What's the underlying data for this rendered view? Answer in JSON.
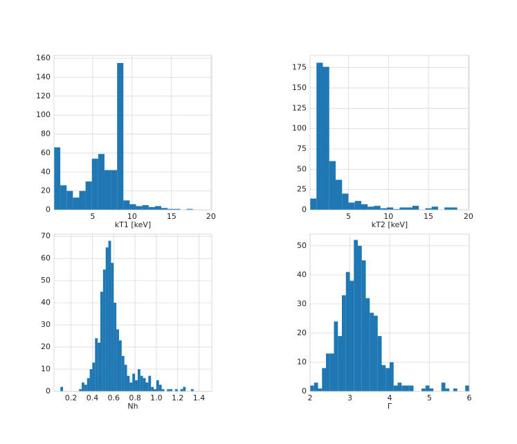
{
  "chart_data": [
    {
      "type": "histogram",
      "xlabel": "kT1 [keV]",
      "color": "#1f77b4",
      "grid": true,
      "bins": [
        0.1,
        0.9,
        1.7,
        2.5,
        3.3,
        4.1,
        4.9,
        5.7,
        6.5,
        7.3,
        8.1,
        8.9,
        9.7,
        10.5,
        11.3,
        12.1,
        12.9,
        13.7,
        14.5,
        15.3,
        16.1,
        16.9,
        17.7,
        18.5,
        19.3,
        20.1
      ],
      "values": [
        66,
        26,
        20,
        13,
        20,
        30,
        54,
        59,
        42,
        42,
        155,
        10,
        6,
        4,
        5,
        3,
        4,
        2,
        1,
        1,
        0,
        1,
        0,
        0,
        0
      ],
      "xlim": [
        0.1,
        20.1
      ],
      "xticks": [
        5,
        10,
        15,
        20
      ],
      "ylim": [
        0,
        163
      ],
      "yticks": [
        0,
        20,
        40,
        60,
        80,
        100,
        120,
        140,
        160
      ]
    },
    {
      "type": "histogram",
      "xlabel": "kT2 [keV]",
      "color": "#1f77b4",
      "grid": true,
      "bins": [
        0.2,
        1,
        1.8,
        2.6,
        3.4,
        4.2,
        5,
        5.8,
        6.6,
        7.4,
        8.2,
        9,
        9.8,
        10.6,
        11.4,
        12.2,
        13,
        13.8,
        14.6,
        15.4,
        16.2,
        17,
        17.8,
        18.6,
        19.4
      ],
      "values": [
        14,
        181,
        176,
        60,
        37,
        20,
        9,
        11,
        7,
        4,
        5,
        2,
        3,
        1,
        3,
        3,
        5,
        0,
        2,
        4,
        0,
        3,
        3,
        0
      ],
      "xlim": [
        0.2,
        20.1
      ],
      "xticks": [
        5,
        10,
        15,
        20
      ],
      "ylim": [
        0,
        190
      ],
      "yticks": [
        0,
        25,
        50,
        75,
        100,
        125,
        150,
        175
      ]
    },
    {
      "type": "histogram",
      "xlabel": "Nh",
      "color": "#1f77b4",
      "grid": true,
      "bins": [
        0.1,
        0.125,
        0.15,
        0.175,
        0.2,
        0.225,
        0.25,
        0.275,
        0.3,
        0.325,
        0.35,
        0.375,
        0.4,
        0.425,
        0.45,
        0.475,
        0.5,
        0.525,
        0.55,
        0.575,
        0.6,
        0.625,
        0.65,
        0.675,
        0.7,
        0.725,
        0.75,
        0.775,
        0.8,
        0.825,
        0.85,
        0.875,
        0.9,
        0.925,
        0.95,
        0.975,
        1,
        1.025,
        1.05,
        1.075,
        1.1,
        1.125,
        1.15,
        1.175,
        1.2,
        1.225,
        1.25,
        1.275,
        1.3,
        1.325,
        1.35,
        1.375
      ],
      "values": [
        2,
        0,
        0,
        0,
        0,
        0,
        0,
        1,
        4,
        3,
        6,
        10,
        13,
        24,
        22,
        45,
        55,
        65,
        68,
        58,
        40,
        28,
        23,
        16,
        12,
        7,
        4,
        8,
        5,
        10,
        7,
        6,
        4,
        7,
        2,
        1,
        5,
        3,
        1,
        0,
        1,
        1,
        0,
        1,
        0,
        1,
        2,
        0,
        0,
        1,
        0
      ],
      "xlim": [
        0.04,
        1.52
      ],
      "xticks": [
        0.2,
        0.4,
        0.6,
        0.8,
        {
          "value": 1,
          "label": "1.0"
        },
        1.2,
        1.4
      ],
      "ylim": [
        0,
        71
      ],
      "yticks": [
        0,
        10,
        20,
        30,
        40,
        50,
        60,
        70
      ]
    },
    {
      "type": "histogram",
      "xlabel": "Γ",
      "color": "#1f77b4",
      "grid": true,
      "bins": [
        2,
        2.1,
        2.2,
        2.3,
        2.4,
        2.5,
        2.6,
        2.7,
        2.8,
        2.9,
        3,
        3.1,
        3.2,
        3.3,
        3.4,
        3.5,
        3.6,
        3.7,
        3.8,
        3.9,
        4,
        4.1,
        4.2,
        4.3,
        4.4,
        4.5,
        4.6,
        4.7,
        4.8,
        4.9,
        5,
        5.1,
        5.2,
        5.3,
        5.4,
        5.5,
        5.6,
        5.7,
        5.8,
        5.9,
        6
      ],
      "values": [
        2,
        3,
        1,
        8,
        13,
        13,
        24,
        19,
        33,
        41,
        38,
        52,
        50,
        45,
        32,
        27,
        26,
        19,
        9,
        8,
        10,
        2,
        3,
        2,
        2,
        2,
        0,
        0,
        1,
        2,
        1,
        0,
        0,
        3,
        1,
        0,
        1,
        0,
        0,
        2
      ],
      "xlim": [
        2,
        6
      ],
      "xticks": [
        2,
        3,
        4,
        5,
        6
      ],
      "ylim": [
        0,
        54
      ],
      "yticks": [
        0,
        10,
        20,
        30,
        40,
        50
      ]
    }
  ]
}
